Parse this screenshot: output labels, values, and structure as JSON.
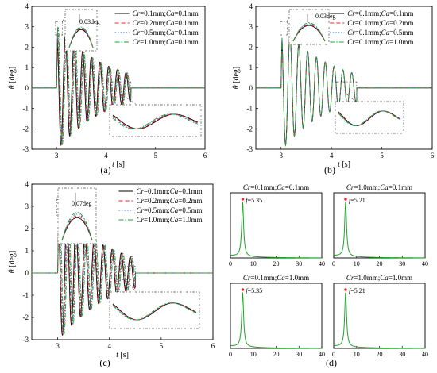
{
  "figure": {
    "panel_labels": [
      "(a)",
      "(b)",
      "(c)",
      "(d)"
    ]
  },
  "chart_data": [
    {
      "panel": "(a)",
      "type": "line",
      "xlabel": "t [s]",
      "ylabel": "θ [deg]",
      "xlim": [
        2.5,
        6
      ],
      "ylim": [
        -3,
        4
      ],
      "xticks": [
        3,
        4,
        5,
        6
      ],
      "yticks": [
        -3,
        -2,
        -1,
        0,
        1,
        2,
        3,
        4
      ],
      "annotation": "0.03deg",
      "response": {
        "start": 3.0,
        "amplitude": 3.05,
        "period": 0.175,
        "decay": 1.0,
        "end": 4.5
      },
      "series": [
        {
          "name": "Cr=0.1mm;Ca=0.1mm",
          "cr": "0.1mm",
          "ca": "0.1mm",
          "color": "#000000",
          "dash": "",
          "amp_scale": 1.0,
          "phase": 0.0
        },
        {
          "name": "Cr=0.2mm;Ca=0.1mm",
          "cr": "0.2mm",
          "ca": "0.1mm",
          "color": "#e8262b",
          "dash": "5,3",
          "amp_scale": 1.003,
          "phase": 0.01
        },
        {
          "name": "Cr=0.5mm;Ca=0.1mm",
          "cr": "0.5mm",
          "ca": "0.1mm",
          "color": "#2b6fd8",
          "dash": "1.5,2",
          "amp_scale": 1.006,
          "phase": 0.02
        },
        {
          "name": "Cr=1.0mm;Ca=0.1mm",
          "cr": "1.0mm",
          "ca": "0.1mm",
          "color": "#23a12d",
          "dash": "6,2,1.5,2",
          "amp_scale": 1.01,
          "phase": 0.03
        }
      ]
    },
    {
      "panel": "(b)",
      "type": "line",
      "xlabel": "t [s]",
      "ylabel": "θ [deg]",
      "xlim": [
        2.5,
        6
      ],
      "ylim": [
        -3,
        4
      ],
      "xticks": [
        3,
        4,
        5,
        6
      ],
      "yticks": [
        -3,
        -2,
        -1,
        0,
        1,
        2,
        3,
        4
      ],
      "annotation": "0.03deg",
      "response": {
        "start": 3.0,
        "amplitude": 3.05,
        "period": 0.175,
        "decay": 1.0,
        "end": 4.5
      },
      "series": [
        {
          "name": "Cr=0.1mm;Ca=0.1mm",
          "cr": "0.1mm",
          "ca": "0.1mm",
          "color": "#000000",
          "dash": "",
          "amp_scale": 1.0,
          "phase": 0.0
        },
        {
          "name": "Cr=0.1mm;Ca=0.2mm",
          "cr": "0.1mm",
          "ca": "0.2mm",
          "color": "#e8262b",
          "dash": "5,3",
          "amp_scale": 1.003,
          "phase": 0.0
        },
        {
          "name": "Cr=0.1mm;Ca=0.5mm",
          "cr": "0.1mm",
          "ca": "0.5mm",
          "color": "#2b6fd8",
          "dash": "1.5,2",
          "amp_scale": 1.006,
          "phase": 0.0
        },
        {
          "name": "Cr=0.1mm;Ca=1.0mm",
          "cr": "0.1mm",
          "ca": "1.0mm",
          "color": "#23a12d",
          "dash": "6,2,1.5,2",
          "amp_scale": 1.01,
          "phase": 0.0
        }
      ]
    },
    {
      "panel": "(c)",
      "type": "line",
      "xlabel": "t [s]",
      "ylabel": "θ [deg]",
      "xlim": [
        2.5,
        6
      ],
      "ylim": [
        -3,
        4
      ],
      "xticks": [
        3,
        4,
        5,
        6
      ],
      "yticks": [
        -3,
        -2,
        -1,
        0,
        1,
        2,
        3,
        4
      ],
      "annotation": "0.07deg",
      "response": {
        "start": 3.0,
        "amplitude": 3.05,
        "period": 0.175,
        "decay": 1.0,
        "end": 4.5
      },
      "series": [
        {
          "name": "Cr=0.1mm;Ca=0.1mm",
          "cr": "0.1mm",
          "ca": "0.1mm",
          "color": "#000000",
          "dash": "",
          "amp_scale": 1.0,
          "phase": 0.0
        },
        {
          "name": "Cr=0.2mm;Ca=0.2mm",
          "cr": "0.2mm",
          "ca": "0.2mm",
          "color": "#e8262b",
          "dash": "5,3",
          "amp_scale": 1.008,
          "phase": 0.012
        },
        {
          "name": "Cr=0.5mm;Ca=0.5mm",
          "cr": "0.5mm",
          "ca": "0.5mm",
          "color": "#2b6fd8",
          "dash": "1.5,2",
          "amp_scale": 1.015,
          "phase": 0.024
        },
        {
          "name": "Cr=1.0mm;Ca=1.0mm",
          "cr": "1.0mm",
          "ca": "1.0mm",
          "color": "#23a12d",
          "dash": "6,2,1.5,2",
          "amp_scale": 1.025,
          "phase": 0.036
        }
      ]
    },
    {
      "panel": "(d)",
      "type": "line",
      "subplots": [
        {
          "cr": "0.1mm",
          "ca": "0.1mm",
          "peak_f": 5.35,
          "peak_label": "f=5.35",
          "xlim": [
            0,
            40
          ],
          "xticks": [
            0,
            10,
            20,
            30,
            40
          ]
        },
        {
          "cr": "1.0mm",
          "ca": "0.1mm",
          "peak_f": 5.21,
          "peak_label": "f=5.21",
          "xlim": [
            0,
            40
          ],
          "xticks": [
            0,
            10,
            20,
            30,
            40
          ]
        },
        {
          "cr": "0.1mm",
          "ca": "1.0mm",
          "peak_f": 5.35,
          "peak_label": "f=5.35",
          "xlim": [
            0,
            40
          ],
          "xticks": [
            0,
            10,
            20,
            30,
            40
          ]
        },
        {
          "cr": "1.0mm",
          "ca": "1.0mm",
          "peak_f": 5.21,
          "peak_label": "f=5.21",
          "xlim": [
            0,
            40
          ],
          "xticks": [
            0,
            10,
            20,
            30,
            40
          ]
        }
      ],
      "line_color": "#23a12d",
      "peak_color": "#e8262b"
    }
  ]
}
